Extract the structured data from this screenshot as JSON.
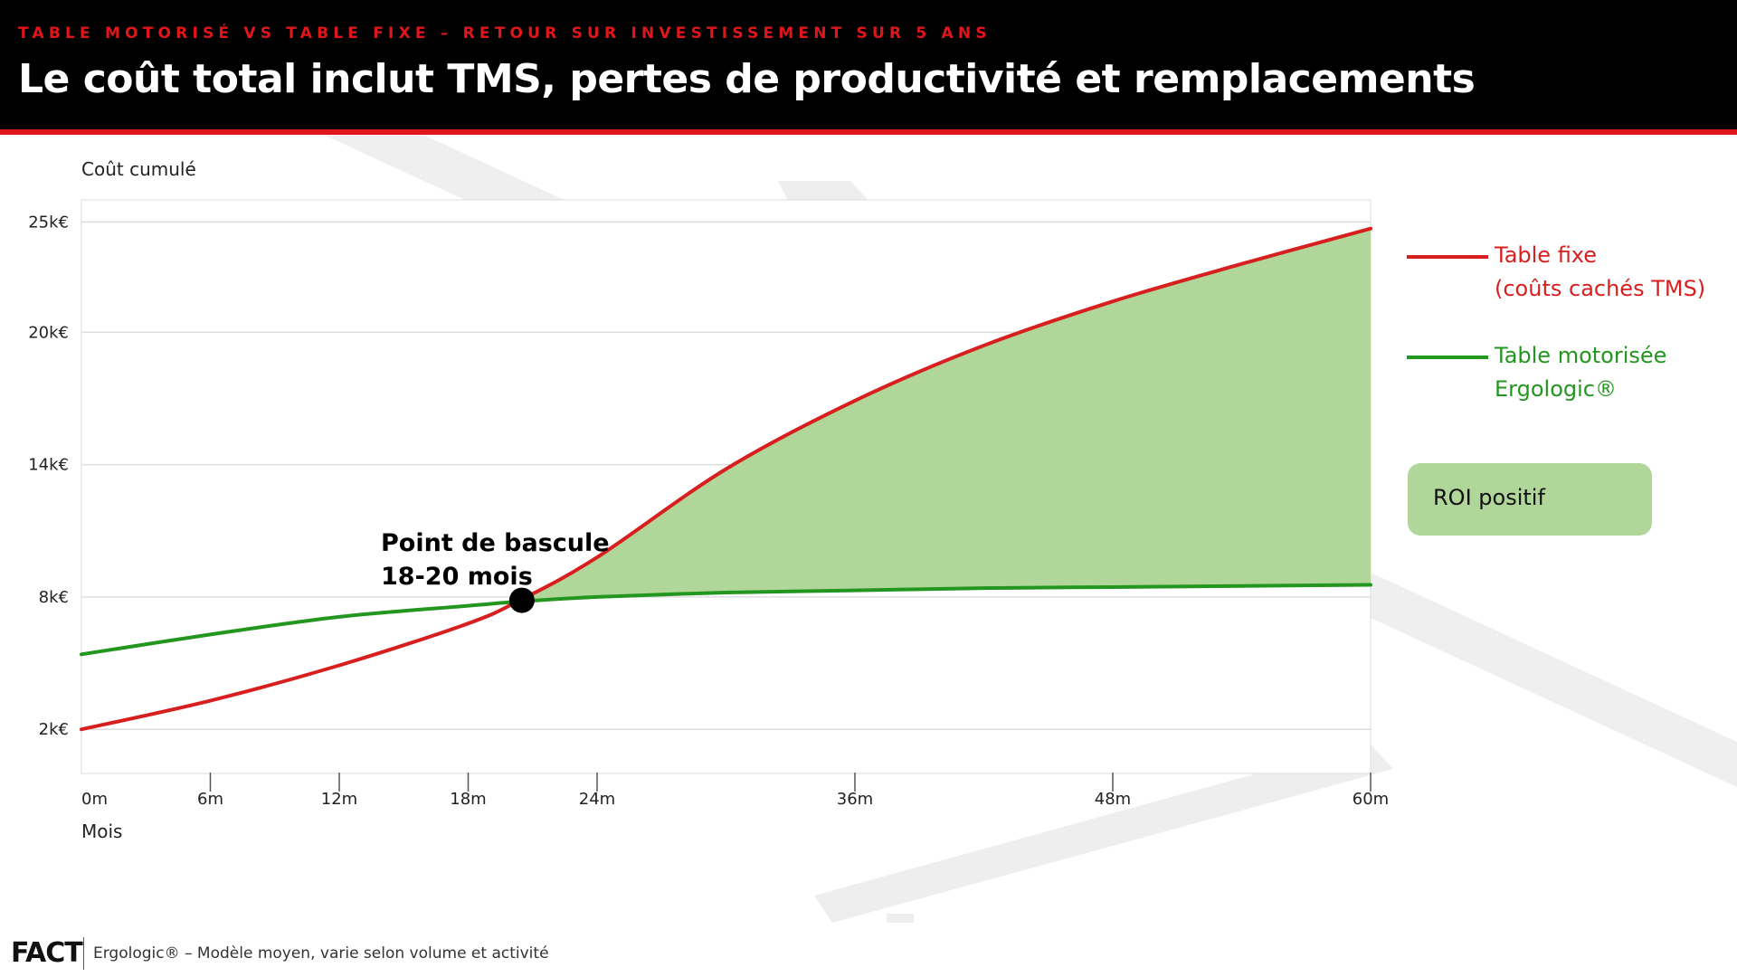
{
  "header": {
    "kicker": "TABLE MOTORISÉ VS TABLE FIXE – RETOUR SUR INVESTISSEMENT SUR 5 ANS",
    "title": "Le coût total inclut TMS, pertes de productivité et remplacements"
  },
  "colors": {
    "brand_red": "#e0161b",
    "series_red": "#d81f1f",
    "series_green": "#23961f",
    "savings_fill": "#b0d699",
    "header_bg": "#000000"
  },
  "legend": {
    "fixed": [
      "Table fixe",
      "(coûts cachés TMS)"
    ],
    "motor": [
      "Table motorisée",
      "Ergologic®"
    ]
  },
  "roi_badge": "ROI positif",
  "footer": {
    "logo": "FACT",
    "note": "Ergologic® – Modèle moyen, varie selon volume et activité"
  },
  "chart_data": {
    "type": "line",
    "ylabel": "Coût cumulé",
    "xlabel": "Mois",
    "y_ticks": [
      {
        "value": 2,
        "label": "2k€"
      },
      {
        "value": 8,
        "label": "8k€"
      },
      {
        "value": 14,
        "label": "14k€"
      },
      {
        "value": 20,
        "label": "20k€"
      },
      {
        "value": 25,
        "label": "25k€"
      }
    ],
    "x_ticks": [
      {
        "value": 0,
        "label": "0m"
      },
      {
        "value": 6,
        "label": "6m"
      },
      {
        "value": 12,
        "label": "12m"
      },
      {
        "value": 18,
        "label": "18m"
      },
      {
        "value": 24,
        "label": "24m"
      },
      {
        "value": 36,
        "label": "36m"
      },
      {
        "value": 48,
        "label": "48m"
      },
      {
        "value": 60,
        "label": "60m"
      }
    ],
    "xlim": [
      0,
      60
    ],
    "ylim": [
      0,
      26
    ],
    "grid": "horizontal",
    "legend_position": "right",
    "series": [
      {
        "name": "Table fixe (coûts cachés TMS)",
        "color": "#d81f1f",
        "x": [
          0,
          6,
          12,
          18,
          20.5,
          24,
          30,
          36,
          42,
          48,
          54,
          60
        ],
        "y": [
          2.0,
          3.3,
          4.9,
          6.8,
          7.9,
          9.8,
          13.8,
          16.9,
          19.4,
          21.4,
          23.1,
          24.7
        ]
      },
      {
        "name": "Table motorisée Ergologic®",
        "color": "#23961f",
        "x": [
          0,
          6,
          12,
          18,
          20.5,
          24,
          30,
          36,
          42,
          48,
          54,
          60
        ],
        "y": [
          5.4,
          6.3,
          7.1,
          7.6,
          7.8,
          8.0,
          8.2,
          8.3,
          8.4,
          8.45,
          8.5,
          8.55
        ]
      }
    ],
    "annotations": [
      {
        "text": [
          "Point de bascule",
          "18-20 mois"
        ],
        "x": 20.5,
        "y": 7.85
      }
    ]
  }
}
